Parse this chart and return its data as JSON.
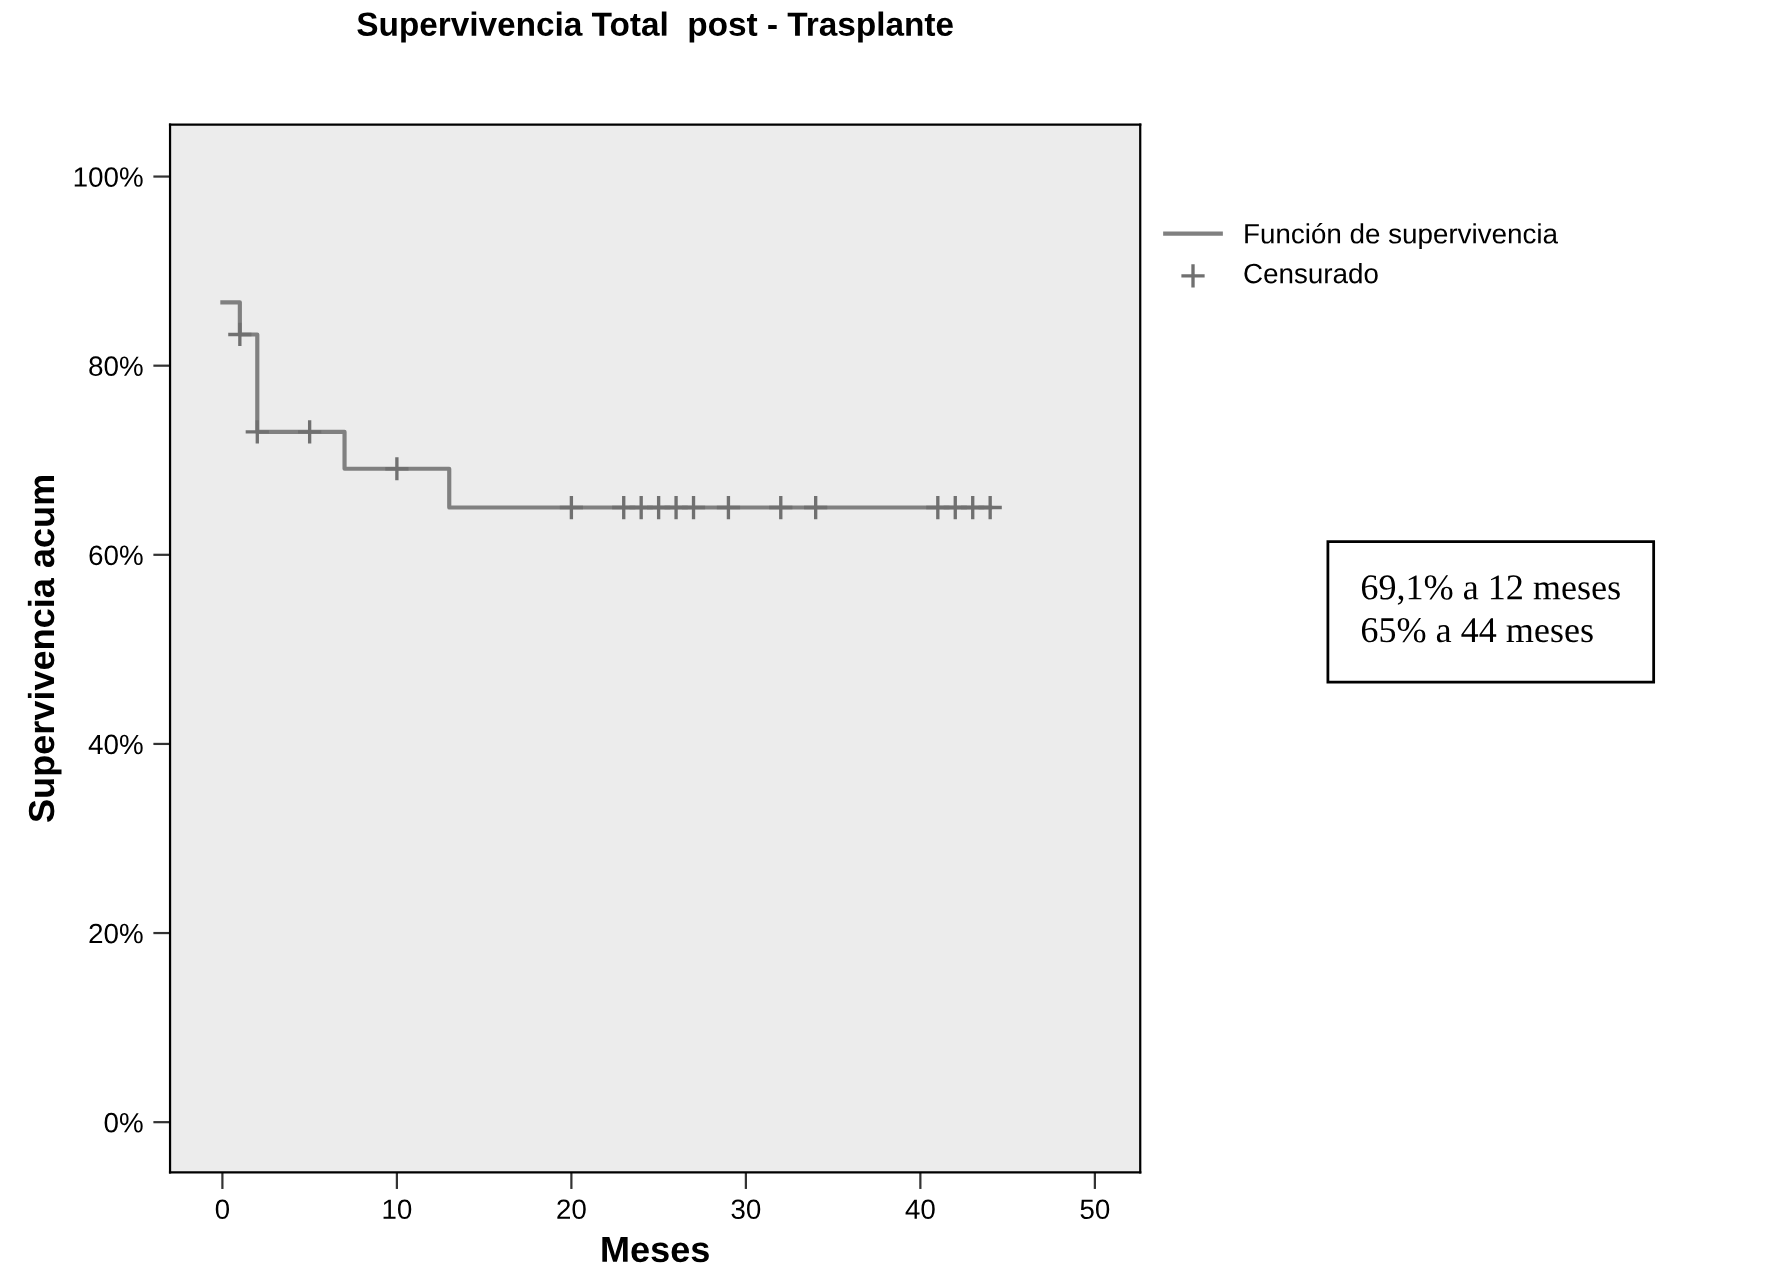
{
  "chart_data": {
    "type": "step",
    "title": "Supervivencia Total  post - Trasplante",
    "xlabel": "Meses",
    "ylabel": "Supervivencia acum",
    "series": [
      {
        "name": "Función de supervivencia",
        "color": "#808080",
        "x": [
          0,
          1,
          2,
          7,
          13,
          44
        ],
        "values": [
          86.7,
          83.3,
          73,
          69.1,
          65,
          65
        ]
      },
      {
        "name": "Censurado",
        "type": "scatter",
        "marker": "cross",
        "color": "#707070",
        "x": [
          1,
          2,
          5,
          10,
          20,
          23,
          24,
          25,
          26,
          27,
          29,
          32,
          34,
          41,
          42,
          43,
          44
        ],
        "values": [
          83.3,
          73,
          73,
          69.1,
          65,
          65,
          65,
          65,
          65,
          65,
          65,
          65,
          65,
          65,
          65,
          65,
          65
        ]
      }
    ],
    "xlim": [
      -3,
      52.6
    ],
    "xticks": [
      0,
      10,
      20,
      30,
      40,
      50
    ],
    "ylim": [
      -5.3,
      105.5
    ],
    "yticks": [
      {
        "value": 0,
        "label": "0%"
      },
      {
        "value": 20,
        "label": "20%"
      },
      {
        "value": 40,
        "label": "40%"
      },
      {
        "value": 60,
        "label": "60%"
      },
      {
        "value": 80,
        "label": "80%"
      },
      {
        "value": 100,
        "label": "100%"
      }
    ],
    "grid": false,
    "legend": "right",
    "annotations": [
      "69,1% a 12 meses\n65% a 44 meses"
    ]
  }
}
